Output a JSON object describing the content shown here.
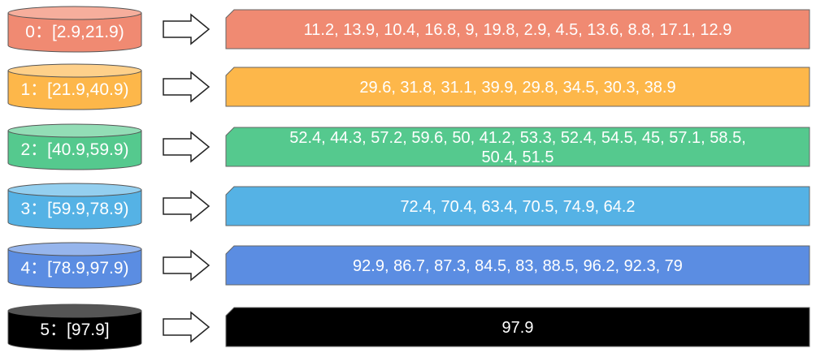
{
  "buckets": [
    {
      "label": "0：[2.9,21.9)",
      "color": "#F08A72",
      "top_color": "#F6AE9C",
      "values_lines": [
        "11.2, 13.9, 10.4, 16.8, 9, 19.8, 2.9, 4.5, 13.6, 8.8, 17.1, 12.9"
      ]
    },
    {
      "label": "1：[21.9,40.9)",
      "color": "#FDB74A",
      "top_color": "#FED08A",
      "values_lines": [
        "29.6, 31.8, 31.1, 39.9, 29.8, 34.5, 30.3, 38.9"
      ]
    },
    {
      "label": "2：[40.9,59.9)",
      "color": "#55C98E",
      "top_color": "#93DDB6",
      "values_lines": [
        "52.4, 44.3, 57.2, 59.6, 50, 41.2, 53.3, 52.4, 54.5, 45, 57.1, 58.5,",
        "50.4, 51.5"
      ]
    },
    {
      "label": "3：[59.9,78.9)",
      "color": "#55B2E5",
      "top_color": "#94CFEF",
      "values_lines": [
        "72.4, 70.4, 63.4, 70.5, 74.9, 64.2"
      ]
    },
    {
      "label": "4：[78.9,97.9)",
      "color": "#5B8DE2",
      "top_color": "#96B5EC",
      "values_lines": [
        "92.9, 86.7, 87.3, 84.5, 83, 88.5, 96.2, 92.3, 79"
      ]
    },
    {
      "label": "5：[97.9]",
      "color": "#000000",
      "top_color": "#555555",
      "values_lines": [
        "97.9"
      ]
    }
  ]
}
